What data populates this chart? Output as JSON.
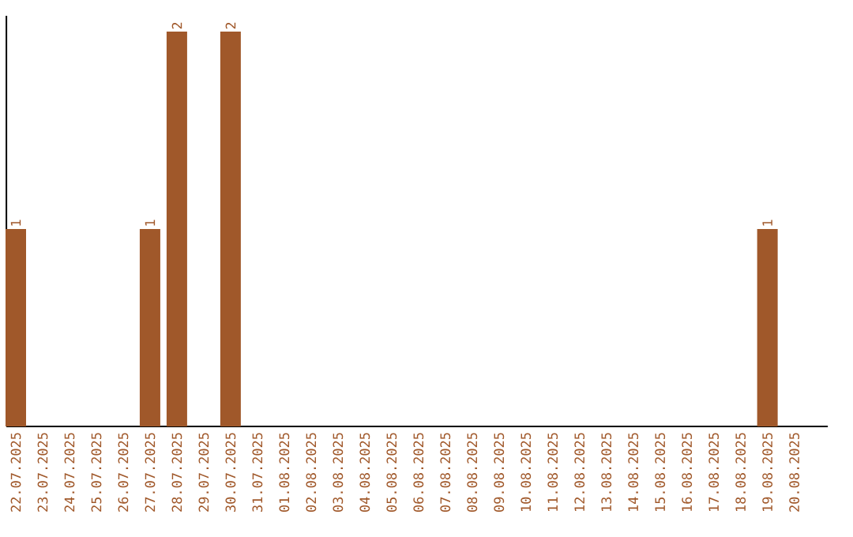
{
  "chart_data": {
    "type": "bar",
    "categories": [
      "22.07.2025",
      "23.07.2025",
      "24.07.2025",
      "25.07.2025",
      "26.07.2025",
      "27.07.2025",
      "28.07.2025",
      "29.07.2025",
      "30.07.2025",
      "31.07.2025",
      "01.08.2025",
      "02.08.2025",
      "03.08.2025",
      "04.08.2025",
      "05.08.2025",
      "06.08.2025",
      "07.08.2025",
      "08.08.2025",
      "09.08.2025",
      "10.08.2025",
      "11.08.2025",
      "12.08.2025",
      "13.08.2025",
      "14.08.2025",
      "15.08.2025",
      "16.08.2025",
      "17.08.2025",
      "18.08.2025",
      "19.08.2025",
      "20.08.2025"
    ],
    "values": [
      1,
      0,
      0,
      0,
      0,
      1,
      2,
      0,
      2,
      0,
      0,
      0,
      0,
      0,
      0,
      0,
      0,
      0,
      0,
      0,
      0,
      0,
      0,
      0,
      0,
      0,
      0,
      0,
      1,
      0
    ],
    "value_labels": [
      "1",
      null,
      null,
      null,
      null,
      "1",
      "2",
      null,
      "2",
      null,
      null,
      null,
      null,
      null,
      null,
      null,
      null,
      null,
      null,
      null,
      null,
      null,
      null,
      null,
      null,
      null,
      null,
      null,
      "1",
      null
    ],
    "color": "#a0582a"
  }
}
